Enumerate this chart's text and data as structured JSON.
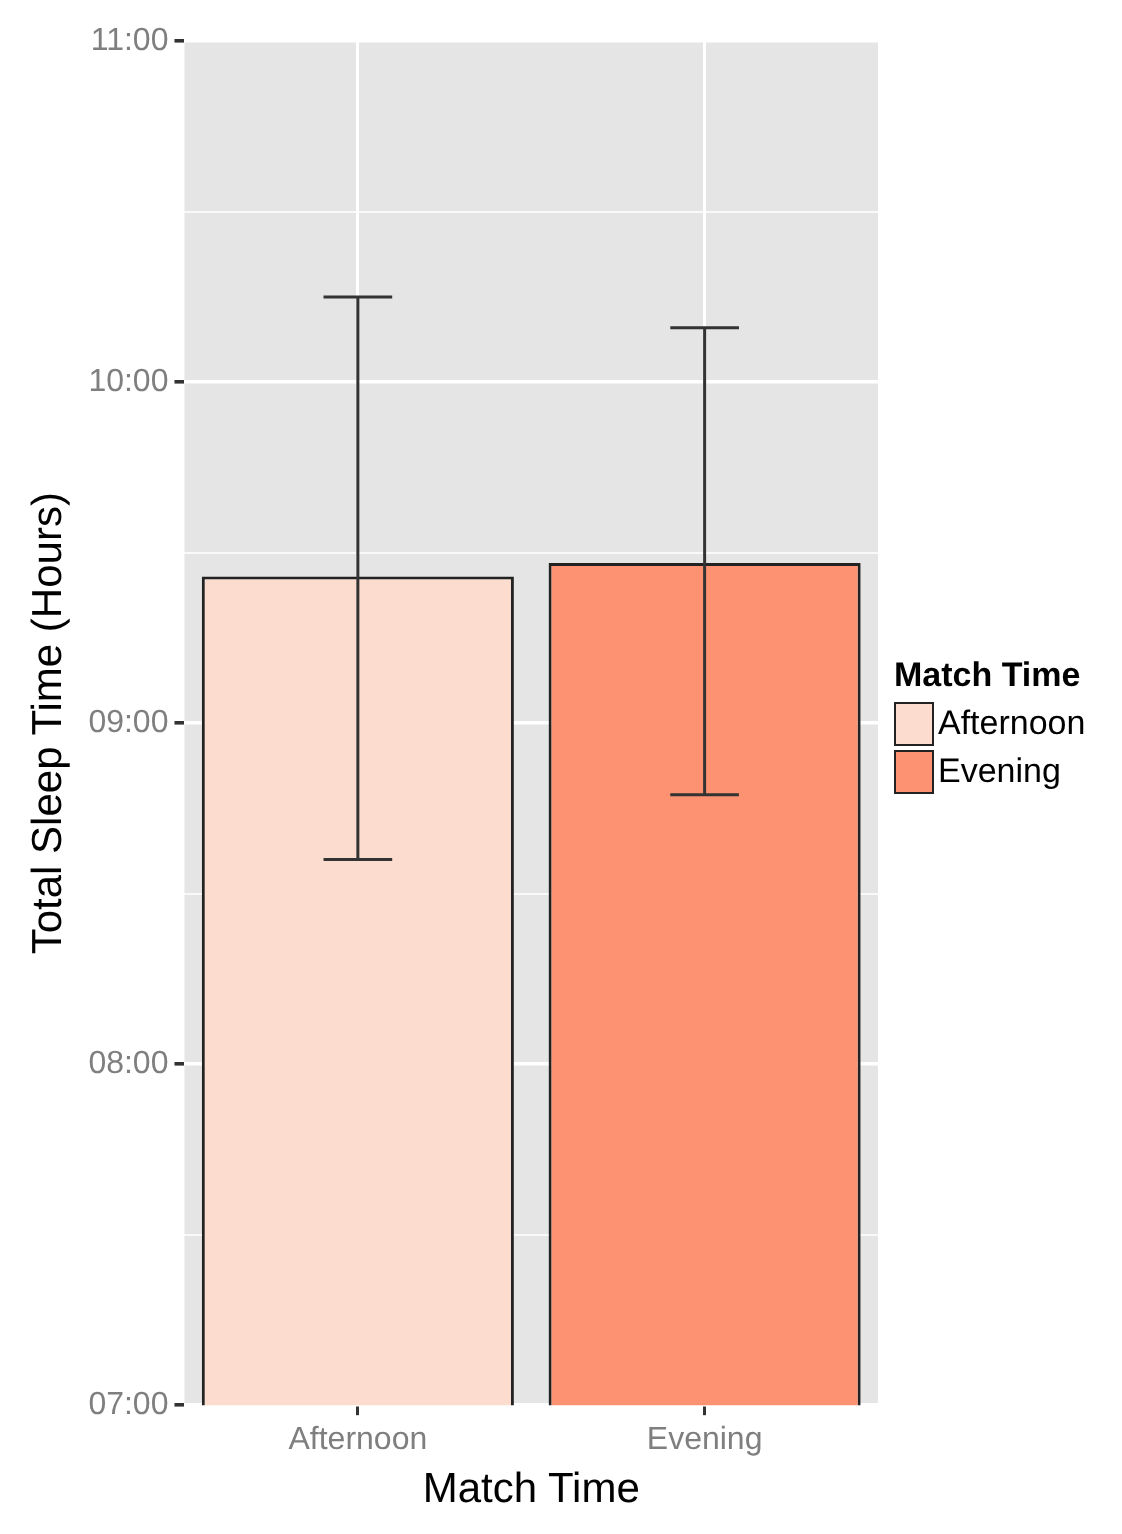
{
  "chart_data": {
    "type": "bar",
    "xlabel": "Match Time",
    "ylabel": "Total Sleep Time (Hours)",
    "legend_title": "Match Time",
    "categories": [
      "Afternoon",
      "Evening"
    ],
    "series": [
      {
        "name": "Afternoon",
        "color": "#fcdccf",
        "values": [
          9.43,
          null
        ],
        "errors": [
          [
            8.6,
            10.25
          ],
          null
        ]
      },
      {
        "name": "Evening",
        "color": "#fc9272",
        "values": [
          null,
          9.47
        ],
        "errors": [
          null,
          [
            8.79,
            10.16
          ]
        ]
      }
    ],
    "ylim": [
      7,
      11
    ],
    "yticks": [
      {
        "value": 7,
        "label": "07:00"
      },
      {
        "value": 7.5,
        "label": null
      },
      {
        "value": 8,
        "label": "08:00"
      },
      {
        "value": 8.5,
        "label": null
      },
      {
        "value": 9,
        "label": "09:00"
      },
      {
        "value": 9.5,
        "label": null
      },
      {
        "value": 10,
        "label": "10:00"
      },
      {
        "value": 10.5,
        "label": null
      },
      {
        "value": 11,
        "label": "11:00"
      }
    ],
    "grid": true,
    "legend": "right"
  }
}
